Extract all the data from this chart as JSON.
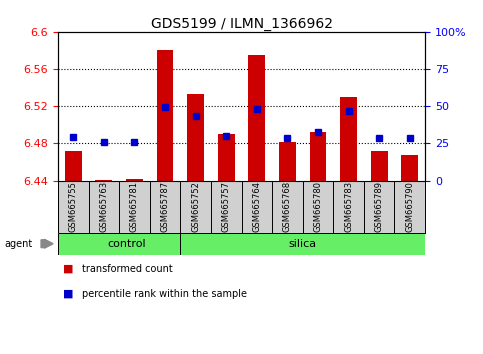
{
  "title": "GDS5199 / ILMN_1366962",
  "samples": [
    "GSM665755",
    "GSM665763",
    "GSM665781",
    "GSM665787",
    "GSM665752",
    "GSM665757",
    "GSM665764",
    "GSM665768",
    "GSM665780",
    "GSM665783",
    "GSM665789",
    "GSM665790"
  ],
  "transformed_count": [
    6.472,
    6.441,
    6.442,
    6.58,
    6.533,
    6.49,
    6.575,
    6.481,
    6.492,
    6.53,
    6.472,
    6.467
  ],
  "percentile_rank": [
    6.487,
    6.481,
    6.482,
    6.519,
    6.509,
    6.488,
    6.517,
    6.486,
    6.492,
    6.515,
    6.486,
    6.486
  ],
  "n_control": 4,
  "ylim_left": [
    6.44,
    6.6
  ],
  "ylim_right": [
    0,
    100
  ],
  "yticks_left": [
    6.44,
    6.48,
    6.52,
    6.56,
    6.6
  ],
  "yticks_right": [
    0,
    25,
    50,
    75,
    100
  ],
  "ytick_labels_left": [
    "6.44",
    "6.48",
    "6.52",
    "6.56",
    "6.6"
  ],
  "ytick_labels_right": [
    "0",
    "25",
    "50",
    "75",
    "100%"
  ],
  "bar_color": "#cc0000",
  "dot_color": "#0000cc",
  "group_color": "#66ee66",
  "sample_bg_color": "#d0d0d0",
  "bar_bottom": 6.44,
  "bar_width": 0.55,
  "grid_yticks": [
    6.48,
    6.52,
    6.56
  ]
}
